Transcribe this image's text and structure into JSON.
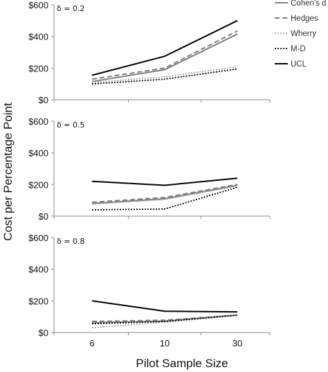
{
  "chart_data": {
    "type": "line",
    "xlabel": "Pilot Sample Size",
    "ylabel": "Cost per Percentage Point",
    "categories": [
      "6",
      "10",
      "30"
    ],
    "ylim": [
      0,
      600
    ],
    "yticks": [
      "$0",
      "$200",
      "$400",
      "$600"
    ],
    "legend": {
      "position": "top-right",
      "entries": [
        {
          "name": "Cohen's d",
          "color": "#7f7f7f",
          "style": "solid"
        },
        {
          "name": "Hedges",
          "color": "#7f7f7f",
          "style": "dashed"
        },
        {
          "name": "Wherry",
          "color": "#a6a6a6",
          "style": "dotted"
        },
        {
          "name": "M-D",
          "color": "#000000",
          "style": "dotted"
        },
        {
          "name": "UCL",
          "color": "#000000",
          "style": "solid"
        }
      ]
    },
    "panels": [
      {
        "label": "δ = 0.2",
        "series": [
          {
            "name": "Cohen's d",
            "values": [
              115,
              190,
              415
            ]
          },
          {
            "name": "Hedges",
            "values": [
              130,
              200,
              435
            ]
          },
          {
            "name": "Wherry",
            "values": [
              110,
              145,
              210
            ]
          },
          {
            "name": "M-D",
            "values": [
              100,
              130,
              195
            ]
          },
          {
            "name": "UCL",
            "values": [
              155,
              275,
              500
            ]
          }
        ]
      },
      {
        "label": "δ = 0.5",
        "series": [
          {
            "name": "Cohen's d",
            "values": [
              80,
              110,
              195
            ]
          },
          {
            "name": "Hedges",
            "values": [
              88,
              118,
              200
            ]
          },
          {
            "name": "Wherry",
            "values": [
              75,
              105,
              190
            ]
          },
          {
            "name": "M-D",
            "values": [
              40,
              45,
              182
            ]
          },
          {
            "name": "UCL",
            "values": [
              220,
              195,
              240
            ]
          }
        ]
      },
      {
        "label": "δ = 0.8",
        "series": [
          {
            "name": "Cohen's d",
            "values": [
              62,
              72,
              110
            ]
          },
          {
            "name": "Hedges",
            "values": [
              70,
              78,
              110
            ]
          },
          {
            "name": "Wherry",
            "values": [
              30,
              65,
              108
            ]
          },
          {
            "name": "M-D",
            "values": [
              55,
              70,
              110
            ]
          },
          {
            "name": "UCL",
            "values": [
              200,
              135,
              130
            ]
          }
        ]
      }
    ]
  }
}
